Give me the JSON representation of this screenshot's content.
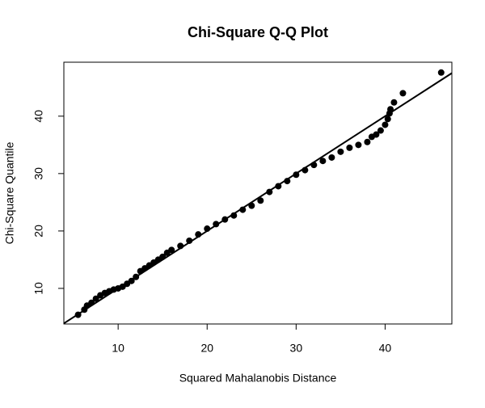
{
  "chart_data": {
    "type": "scatter",
    "title": "Chi-Square Q-Q Plot",
    "x_label": "Squared Mahalanobis Distance",
    "y_label": "Chi-Square Quantile",
    "x": [
      5.5,
      6.2,
      6.5,
      7,
      7.5,
      8,
      8.5,
      9,
      9.5,
      10,
      10.5,
      11,
      11.5,
      12,
      12.5,
      13,
      13.5,
      14,
      14.5,
      15,
      15.5,
      16,
      17,
      18,
      19,
      20,
      21,
      22,
      23,
      24,
      25,
      26,
      27,
      28,
      29,
      30,
      31,
      32,
      33,
      34,
      35,
      36,
      37,
      38,
      38.5,
      39,
      39.5,
      40,
      40.3,
      40.5,
      40.6,
      41,
      42,
      46.3
    ],
    "values": [
      5.4,
      6.3,
      7,
      7.5,
      8.2,
      8.8,
      9.2,
      9.5,
      9.8,
      10,
      10.3,
      10.8,
      11.3,
      12,
      13,
      13.5,
      14,
      14.5,
      15,
      15.5,
      16.2,
      16.7,
      17.4,
      18.3,
      19.4,
      20.4,
      21.2,
      22,
      22.7,
      23.7,
      24.4,
      25.3,
      26.8,
      27.8,
      28.7,
      29.8,
      30.6,
      31.5,
      32.2,
      32.8,
      33.8,
      34.5,
      35,
      35.5,
      36.4,
      36.8,
      37.5,
      38.5,
      39.5,
      40.5,
      41.2,
      42.4,
      44,
      47.6
    ],
    "color": "#000000",
    "reference_line": {
      "intercept": 0,
      "slope": 1
    },
    "xlim": [
      3.9,
      47.5
    ],
    "ylim": [
      3.8,
      49.4
    ],
    "xticks": [
      10,
      20,
      30,
      40
    ],
    "yticks": [
      10,
      20,
      30,
      40
    ]
  }
}
